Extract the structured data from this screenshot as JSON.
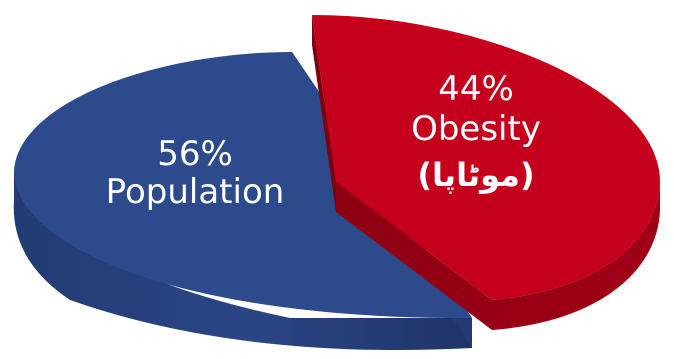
{
  "chart_data": {
    "type": "pie",
    "title": "",
    "categories": [
      "Population",
      "Obesity"
    ],
    "values": [
      56,
      44
    ],
    "labels": [
      {
        "percent": "56%",
        "name": "Population",
        "sub": ""
      },
      {
        "percent": "44%",
        "name": "Obesity",
        "sub": "(موٹاپا)"
      }
    ],
    "colors": {
      "population": "#2d4a8c",
      "obesity": "#c4001d"
    },
    "legend": "none",
    "style": "3d-exploded"
  }
}
